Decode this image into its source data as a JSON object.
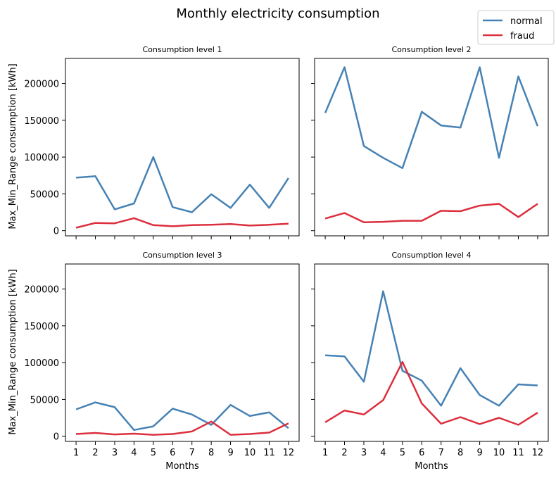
{
  "chart_data": {
    "type": "line",
    "title": "Monthly electricity consumption",
    "ylabel": "Max_Min_Range consumption [kWh]",
    "xlabel": "Months",
    "x": [
      1,
      2,
      3,
      4,
      5,
      6,
      7,
      8,
      9,
      10,
      11,
      12
    ],
    "xticks": [
      "1",
      "2",
      "3",
      "4",
      "5",
      "6",
      "7",
      "8",
      "9",
      "10",
      "11",
      "12"
    ],
    "ylim": [
      -7000,
      234000
    ],
    "yticks": [
      0,
      50000,
      100000,
      150000,
      200000
    ],
    "ytick_labels": [
      "0",
      "50000",
      "100000",
      "150000",
      "200000"
    ],
    "legend": {
      "placement": "top-right",
      "entries": [
        {
          "name": "normal",
          "color": "#4682b4"
        },
        {
          "name": "fraud",
          "color": "#dc2f3e"
        }
      ]
    },
    "panels": [
      {
        "title": "Consumption level 1",
        "series": [
          {
            "name": "normal",
            "values": [
              72000,
              74000,
              29000,
              37000,
              100000,
              32000,
              25000,
              49500,
              31000,
              62500,
              31000,
              71500
            ]
          },
          {
            "name": "fraud",
            "values": [
              4000,
              10500,
              10000,
              17000,
              7500,
              6000,
              7500,
              8000,
              9000,
              7000,
              8000,
              9500
            ]
          }
        ]
      },
      {
        "title": "Consumption level 2",
        "series": [
          {
            "name": "normal",
            "values": [
              160000,
              222000,
              115000,
              99000,
              85000,
              161500,
              143000,
              140000,
              222000,
              99000,
              209500,
              142000
            ]
          },
          {
            "name": "fraud",
            "values": [
              16500,
              24000,
              11500,
              12000,
              13500,
              13500,
              27000,
              26500,
              34000,
              36500,
              18500,
              36500
            ]
          }
        ]
      },
      {
        "title": "Consumption level 3",
        "series": [
          {
            "name": "normal",
            "values": [
              36500,
              46000,
              39500,
              8500,
              13500,
              37500,
              29500,
              15500,
              42500,
              27500,
              32500,
              11000
            ]
          },
          {
            "name": "fraud",
            "values": [
              3000,
              4500,
              2500,
              3500,
              2000,
              3000,
              6500,
              20000,
              2000,
              3000,
              5000,
              17500
            ]
          }
        ]
      },
      {
        "title": "Consumption level 4",
        "series": [
          {
            "name": "normal",
            "values": [
              110000,
              108500,
              74000,
              197000,
              89000,
              75500,
              41500,
              92500,
              56000,
              41500,
              70500,
              69000
            ]
          },
          {
            "name": "fraud",
            "values": [
              19000,
              35000,
              29500,
              49000,
              101000,
              44500,
              17000,
              26000,
              16500,
              25000,
              15500,
              32000
            ]
          }
        ]
      }
    ]
  }
}
